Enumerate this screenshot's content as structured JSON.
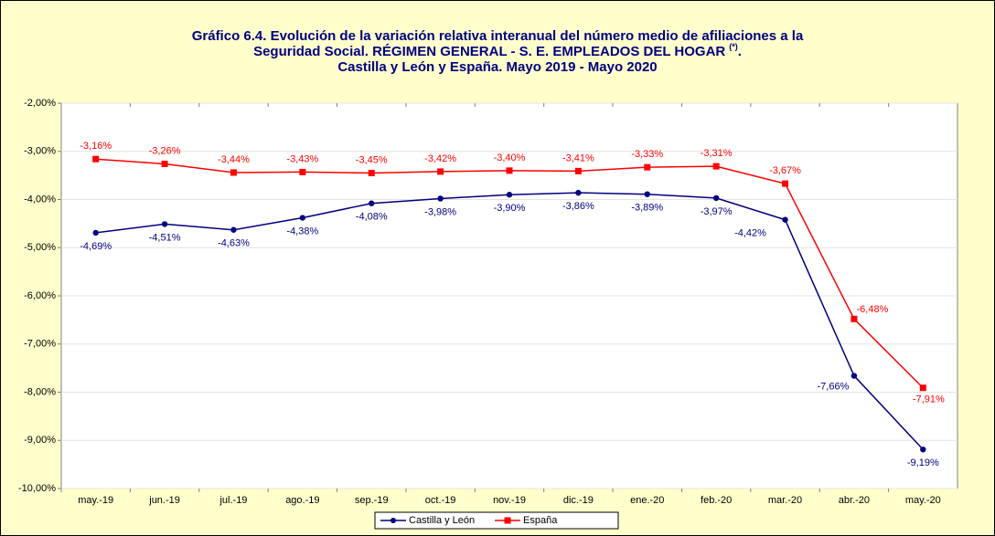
{
  "chart_data": {
    "type": "line",
    "title": [
      "Gráfico 6.4. Evolución de la variación relativa interanual del número medio de afiliaciones a la",
      [
        "Seguridad Social. RÉGIMEN GENERAL - S. E. EMPLEADOS DEL HOGAR",
        "(*)",
        "."
      ],
      "Castilla y León y España. Mayo 2019 - Mayo 2020"
    ],
    "categories": [
      "may.-19",
      "jun.-19",
      "jul.-19",
      "ago.-19",
      "sep.-19",
      "oct.-19",
      "nov.-19",
      "dic.-19",
      "ene.-20",
      "feb.-20",
      "mar.-20",
      "abr.-20",
      "may.-20"
    ],
    "series": [
      {
        "name": "Castilla y León",
        "color": "#000080",
        "values": [
          -4.69,
          -4.51,
          -4.63,
          -4.38,
          -4.08,
          -3.98,
          -3.9,
          -3.86,
          -3.89,
          -3.97,
          -4.42,
          -7.66,
          -9.19
        ],
        "value_labels": [
          "-4,69%",
          "-4,51%",
          "-4,63%",
          "-4,38%",
          "-4,08%",
          "-3,98%",
          "-3,90%",
          "-3,86%",
          "-3,89%",
          "-3,97%",
          "-4,42%",
          "-7,66%",
          "-9,19%"
        ]
      },
      {
        "name": "España",
        "color": "#ff0000",
        "values": [
          -3.16,
          -3.26,
          -3.44,
          -3.43,
          -3.45,
          -3.42,
          -3.4,
          -3.41,
          -3.33,
          -3.31,
          -3.67,
          -6.48,
          -7.91
        ],
        "value_labels": [
          "-3,16%",
          "-3,26%",
          "-3,44%",
          "-3,43%",
          "-3,45%",
          "-3,42%",
          "-3,40%",
          "-3,41%",
          "-3,33%",
          "-3,31%",
          "-3,67%",
          "-6,48%",
          "-7,91%"
        ]
      }
    ],
    "ylim": [
      -10,
      -2
    ],
    "yticks": [
      {
        "value": -10,
        "label": "-10,00%"
      },
      {
        "value": -9,
        "label": "-9,00%"
      },
      {
        "value": -8,
        "label": "-8,00%"
      },
      {
        "value": -7,
        "label": "-7,00%"
      },
      {
        "value": -6,
        "label": "-6,00%"
      },
      {
        "value": -5,
        "label": "-5,00%"
      },
      {
        "value": -4,
        "label": "-4,00%"
      },
      {
        "value": -3,
        "label": "-3,00%"
      },
      {
        "value": -2,
        "label": "-2,00%"
      }
    ],
    "grid": true,
    "legend": "bottom"
  }
}
